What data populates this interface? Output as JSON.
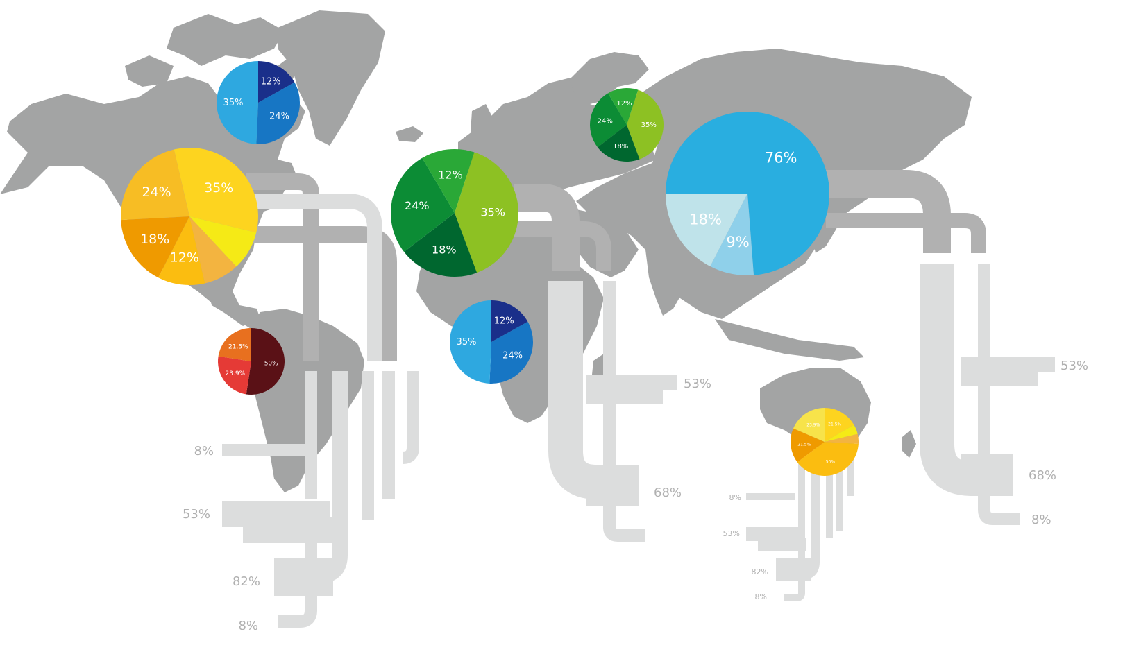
{
  "chart_data": [
    {
      "type": "pie",
      "region": "north-america-north",
      "slices": [
        {
          "label": "12%",
          "value": 12,
          "color": "#1a2f8a"
        },
        {
          "label": "24%",
          "value": 24,
          "color": "#1776c4"
        },
        {
          "label": "35%",
          "value": 35,
          "color": "#2ea8e0"
        }
      ]
    },
    {
      "type": "pie",
      "region": "north-america",
      "slices": [
        {
          "label": "35%",
          "value": 35,
          "color": "#fdd41f"
        },
        {
          "label": "",
          "value": 10,
          "color": "#f5ea16"
        },
        {
          "label": "",
          "value": 9,
          "color": "#f3b440"
        },
        {
          "label": "12%",
          "value": 12,
          "color": "#fbbd10"
        },
        {
          "label": "18%",
          "value": 18,
          "color": "#ef9a00"
        },
        {
          "label": "24%",
          "value": 24,
          "color": "#f7bd24"
        }
      ]
    },
    {
      "type": "pie",
      "region": "south-america",
      "slices": [
        {
          "label": "50%",
          "value": 50,
          "color": "#5a1116"
        },
        {
          "label": "23.9%",
          "value": 23.9,
          "color": "#e53a36"
        },
        {
          "label": "21.5%",
          "value": 21.5,
          "color": "#e8701f"
        }
      ]
    },
    {
      "type": "pie",
      "region": "europe",
      "slices": [
        {
          "label": "35%",
          "value": 35,
          "color": "#8dc123"
        },
        {
          "label": "18%",
          "value": 18,
          "color": "#00672f"
        },
        {
          "label": "24%",
          "value": 24,
          "color": "#0c8c35"
        },
        {
          "label": "12%",
          "value": 12,
          "color": "#2aa837"
        }
      ]
    },
    {
      "type": "pie",
      "region": "russia-west",
      "slices": [
        {
          "label": "35%",
          "value": 35,
          "color": "#8dc123"
        },
        {
          "label": "18%",
          "value": 18,
          "color": "#00672f"
        },
        {
          "label": "24%",
          "value": 24,
          "color": "#0c8c35"
        },
        {
          "label": "12%",
          "value": 12,
          "color": "#2aa837"
        }
      ]
    },
    {
      "type": "pie",
      "region": "africa",
      "slices": [
        {
          "label": "12%",
          "value": 12,
          "color": "#1a2f8a"
        },
        {
          "label": "24%",
          "value": 24,
          "color": "#1776c4"
        },
        {
          "label": "35%",
          "value": 35,
          "color": "#2ea8e0"
        }
      ]
    },
    {
      "type": "pie",
      "region": "asia",
      "slices": [
        {
          "label": "76%",
          "value": 76,
          "color": "#29aee0"
        },
        {
          "label": "9%",
          "value": 9,
          "color": "#8fd0ea"
        },
        {
          "label": "18%",
          "value": 18,
          "color": "#bfe3ea"
        }
      ]
    },
    {
      "type": "pie",
      "region": "australia",
      "slices": [
        {
          "label": "21.5%",
          "value": 21.5,
          "color": "#fdd41f"
        },
        {
          "label": "",
          "value": 6,
          "color": "#f5ea16"
        },
        {
          "label": "",
          "value": 6,
          "color": "#f3b440"
        },
        {
          "label": "50%",
          "value": 50,
          "color": "#fbbd10"
        },
        {
          "label": "21.5%",
          "value": 21.5,
          "color": "#ef9a00"
        },
        {
          "label": "23.9%",
          "value": 23.9,
          "color": "#f7e34a"
        }
      ]
    }
  ],
  "pipe_labels": {
    "americas": [
      "8%",
      "53%",
      "82%",
      "8%"
    ],
    "africa": [
      "53%",
      "68%"
    ],
    "asia": [
      "53%",
      "68%",
      "8%"
    ],
    "australia": [
      "8%",
      "53%",
      "82%",
      "8%"
    ]
  },
  "colors": {
    "land": "#a3a4a4",
    "pipe_dark": "#b1b1b1",
    "pipe_light": "#dcdddd",
    "label": "#b0b0b0"
  }
}
